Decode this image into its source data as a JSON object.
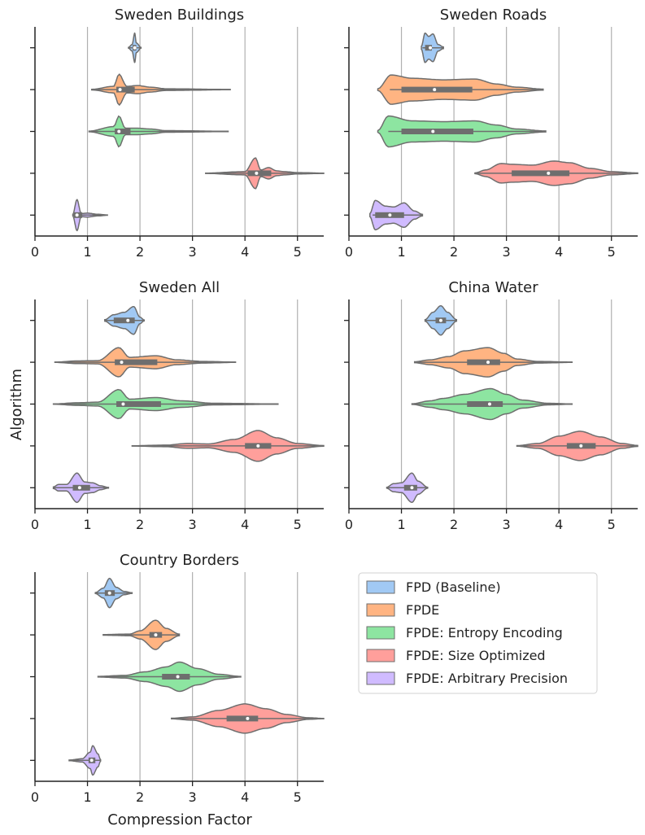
{
  "chart_data": {
    "type": "violin",
    "xlabel": "Compression Factor",
    "ylabel": "Algorithm",
    "xlim": [
      0,
      5.5
    ],
    "xticks": [
      "0",
      "1",
      "2",
      "3",
      "4",
      "5"
    ],
    "grid": "vertical",
    "legend": {
      "placement": "right of bottom-left panel",
      "entries": [
        {
          "label": "FPD (Baseline)",
          "color": "#a1c9f4"
        },
        {
          "label": "FPDE",
          "color": "#ffb482"
        },
        {
          "label": "FPDE: Entropy Encoding",
          "color": "#8de5a1"
        },
        {
          "label": "FPDE: Size Optimized",
          "color": "#ff9f9b"
        },
        {
          "label": "FPDE: Arbitrary Precision",
          "color": "#d0bbff"
        }
      ]
    },
    "panels": [
      {
        "title": "Sweden Buildings",
        "series": [
          {
            "min": 1.78,
            "q1": 1.86,
            "median": 1.9,
            "q3": 1.93,
            "max": 2.02,
            "profile": [
              [
                1.78,
                0.02
              ],
              [
                1.85,
                0.2
              ],
              [
                1.9,
                0.9
              ],
              [
                1.93,
                0.3
              ],
              [
                2.02,
                0.02
              ]
            ]
          },
          {
            "min": 1.08,
            "q1": 1.55,
            "median": 1.62,
            "q3": 1.9,
            "max": 3.72,
            "profile": [
              [
                1.08,
                0.02
              ],
              [
                1.5,
                0.2
              ],
              [
                1.6,
                0.95
              ],
              [
                1.75,
                0.2
              ],
              [
                1.95,
                0.25
              ],
              [
                2.2,
                0.15
              ],
              [
                2.5,
                0.05
              ],
              [
                3.72,
                0.01
              ]
            ]
          },
          {
            "min": 1.03,
            "q1": 1.52,
            "median": 1.6,
            "q3": 1.82,
            "max": 3.68,
            "profile": [
              [
                1.03,
                0.02
              ],
              [
                1.5,
                0.3
              ],
              [
                1.6,
                0.95
              ],
              [
                1.72,
                0.2
              ],
              [
                1.95,
                0.2
              ],
              [
                2.2,
                0.15
              ],
              [
                2.5,
                0.05
              ],
              [
                3.68,
                0.01
              ]
            ]
          },
          {
            "min": 3.25,
            "q1": 4.05,
            "median": 4.22,
            "q3": 4.5,
            "max": 5.5,
            "profile": [
              [
                3.25,
                0.01
              ],
              [
                4.0,
                0.1
              ],
              [
                4.2,
                0.95
              ],
              [
                4.3,
                0.2
              ],
              [
                4.45,
                0.35
              ],
              [
                4.6,
                0.15
              ],
              [
                4.75,
                0.1
              ],
              [
                5.0,
                0.04
              ],
              [
                5.5,
                0.01
              ]
            ]
          },
          {
            "min": 0.72,
            "q1": 0.74,
            "median": 0.8,
            "q3": 0.9,
            "max": 1.38,
            "profile": [
              [
                0.72,
                0.05
              ],
              [
                0.8,
                0.95
              ],
              [
                0.88,
                0.1
              ],
              [
                1.0,
                0.12
              ],
              [
                1.2,
                0.05
              ],
              [
                1.38,
                0.01
              ]
            ]
          }
        ]
      },
      {
        "title": "Sweden Roads",
        "series": [
          {
            "min": 1.4,
            "q1": 1.45,
            "median": 1.55,
            "q3": 1.58,
            "max": 1.8,
            "profile": [
              [
                1.38,
                0.1
              ],
              [
                1.45,
                0.9
              ],
              [
                1.52,
                0.7
              ],
              [
                1.6,
                0.85
              ],
              [
                1.7,
                0.2
              ],
              [
                1.8,
                0.05
              ]
            ]
          },
          {
            "min": 0.78,
            "q1": 1.0,
            "median": 1.63,
            "q3": 2.35,
            "max": 3.7,
            "profile": [
              [
                0.55,
                0.05
              ],
              [
                0.8,
                0.9
              ],
              [
                1.2,
                0.7
              ],
              [
                1.8,
                0.6
              ],
              [
                2.4,
                0.65
              ],
              [
                2.8,
                0.35
              ],
              [
                3.2,
                0.15
              ],
              [
                3.7,
                0.03
              ]
            ]
          },
          {
            "min": 0.75,
            "q1": 1.0,
            "median": 1.6,
            "q3": 2.37,
            "max": 3.75,
            "profile": [
              [
                0.55,
                0.05
              ],
              [
                0.75,
                0.95
              ],
              [
                1.2,
                0.65
              ],
              [
                1.8,
                0.6
              ],
              [
                2.4,
                0.65
              ],
              [
                2.8,
                0.4
              ],
              [
                3.2,
                0.15
              ],
              [
                3.75,
                0.03
              ]
            ]
          },
          {
            "min": 2.4,
            "q1": 3.1,
            "median": 3.8,
            "q3": 4.2,
            "max": 5.5,
            "profile": [
              [
                2.4,
                0.02
              ],
              [
                2.6,
                0.2
              ],
              [
                2.9,
                0.6
              ],
              [
                3.1,
                0.55
              ],
              [
                3.5,
                0.5
              ],
              [
                3.9,
                0.75
              ],
              [
                4.2,
                0.65
              ],
              [
                4.6,
                0.3
              ],
              [
                5.0,
                0.1
              ],
              [
                5.5,
                0.02
              ]
            ]
          },
          {
            "min": 0.45,
            "q1": 0.5,
            "median": 0.78,
            "q3": 1.05,
            "max": 1.4,
            "profile": [
              [
                0.4,
                0.1
              ],
              [
                0.5,
                0.9
              ],
              [
                0.7,
                0.55
              ],
              [
                0.85,
                0.5
              ],
              [
                1.05,
                0.75
              ],
              [
                1.25,
                0.25
              ],
              [
                1.4,
                0.05
              ]
            ]
          }
        ]
      },
      {
        "title": "Sweden All",
        "series": [
          {
            "min": 1.33,
            "q1": 1.5,
            "median": 1.77,
            "q3": 1.9,
            "max": 2.08,
            "profile": [
              [
                1.33,
                0.05
              ],
              [
                1.5,
                0.35
              ],
              [
                1.7,
                0.5
              ],
              [
                1.88,
                0.85
              ],
              [
                2.0,
                0.2
              ],
              [
                2.08,
                0.03
              ]
            ]
          },
          {
            "min": 0.38,
            "q1": 1.52,
            "median": 1.65,
            "q3": 2.33,
            "max": 3.82,
            "profile": [
              [
                0.38,
                0.01
              ],
              [
                0.8,
                0.08
              ],
              [
                1.2,
                0.1
              ],
              [
                1.6,
                0.9
              ],
              [
                1.8,
                0.3
              ],
              [
                2.3,
                0.4
              ],
              [
                2.7,
                0.15
              ],
              [
                3.2,
                0.05
              ],
              [
                3.82,
                0.01
              ]
            ]
          },
          {
            "min": 0.35,
            "q1": 1.55,
            "median": 1.68,
            "q3": 2.4,
            "max": 4.63,
            "profile": [
              [
                0.35,
                0.01
              ],
              [
                0.8,
                0.08
              ],
              [
                1.2,
                0.12
              ],
              [
                1.6,
                0.9
              ],
              [
                1.8,
                0.3
              ],
              [
                2.3,
                0.4
              ],
              [
                2.8,
                0.2
              ],
              [
                3.4,
                0.05
              ],
              [
                4.63,
                0.01
              ]
            ]
          },
          {
            "min": 1.85,
            "q1": 4.0,
            "median": 4.25,
            "q3": 4.5,
            "max": 5.5,
            "profile": [
              [
                1.85,
                0.01
              ],
              [
                2.5,
                0.05
              ],
              [
                2.9,
                0.15
              ],
              [
                3.3,
                0.12
              ],
              [
                3.8,
                0.4
              ],
              [
                4.25,
                0.95
              ],
              [
                4.6,
                0.5
              ],
              [
                5.0,
                0.15
              ],
              [
                5.5,
                0.02
              ]
            ]
          },
          {
            "min": 0.35,
            "q1": 0.72,
            "median": 0.85,
            "q3": 1.05,
            "max": 1.4,
            "profile": [
              [
                0.35,
                0.05
              ],
              [
                0.45,
                0.2
              ],
              [
                0.6,
                0.2
              ],
              [
                0.8,
                0.9
              ],
              [
                0.95,
                0.35
              ],
              [
                1.1,
                0.3
              ],
              [
                1.25,
                0.12
              ],
              [
                1.4,
                0.02
              ]
            ]
          }
        ]
      },
      {
        "title": "China Water",
        "series": [
          {
            "min": 1.45,
            "q1": 1.65,
            "median": 1.75,
            "q3": 1.85,
            "max": 2.05,
            "profile": [
              [
                1.45,
                0.05
              ],
              [
                1.6,
                0.5
              ],
              [
                1.75,
                0.9
              ],
              [
                1.88,
                0.5
              ],
              [
                2.05,
                0.05
              ]
            ]
          },
          {
            "min": 1.25,
            "q1": 2.25,
            "median": 2.65,
            "q3": 2.88,
            "max": 4.25,
            "profile": [
              [
                1.25,
                0.03
              ],
              [
                1.55,
                0.15
              ],
              [
                1.9,
                0.35
              ],
              [
                2.2,
                0.7
              ],
              [
                2.65,
                0.9
              ],
              [
                2.95,
                0.55
              ],
              [
                3.2,
                0.2
              ],
              [
                3.6,
                0.05
              ],
              [
                4.25,
                0.01
              ]
            ]
          },
          {
            "min": 1.2,
            "q1": 2.25,
            "median": 2.68,
            "q3": 2.93,
            "max": 4.25,
            "profile": [
              [
                1.2,
                0.02
              ],
              [
                1.55,
                0.2
              ],
              [
                1.8,
                0.35
              ],
              [
                2.2,
                0.6
              ],
              [
                2.7,
                0.95
              ],
              [
                3.0,
                0.6
              ],
              [
                3.3,
                0.25
              ],
              [
                3.8,
                0.05
              ],
              [
                4.25,
                0.01
              ]
            ]
          },
          {
            "min": 3.2,
            "q1": 4.15,
            "median": 4.42,
            "q3": 4.7,
            "max": 5.5,
            "profile": [
              [
                3.2,
                0.02
              ],
              [
                3.6,
                0.15
              ],
              [
                4.0,
                0.6
              ],
              [
                4.4,
                0.9
              ],
              [
                4.8,
                0.55
              ],
              [
                5.2,
                0.15
              ],
              [
                5.5,
                0.03
              ]
            ]
          },
          {
            "min": 0.72,
            "q1": 1.05,
            "median": 1.2,
            "q3": 1.3,
            "max": 1.5,
            "profile": [
              [
                0.72,
                0.03
              ],
              [
                0.85,
                0.25
              ],
              [
                1.0,
                0.3
              ],
              [
                1.2,
                0.9
              ],
              [
                1.32,
                0.4
              ],
              [
                1.5,
                0.03
              ]
            ]
          }
        ]
      },
      {
        "title": "Country Borders",
        "series": [
          {
            "min": 1.15,
            "q1": 1.33,
            "median": 1.42,
            "q3": 1.52,
            "max": 1.85,
            "profile": [
              [
                1.15,
                0.03
              ],
              [
                1.3,
                0.3
              ],
              [
                1.42,
                0.9
              ],
              [
                1.55,
                0.35
              ],
              [
                1.7,
                0.1
              ],
              [
                1.85,
                0.02
              ]
            ]
          },
          {
            "min": 1.3,
            "q1": 2.18,
            "median": 2.3,
            "q3": 2.42,
            "max": 2.75,
            "profile": [
              [
                1.3,
                0.02
              ],
              [
                1.8,
                0.05
              ],
              [
                2.0,
                0.25
              ],
              [
                2.3,
                0.9
              ],
              [
                2.5,
                0.4
              ],
              [
                2.75,
                0.05
              ]
            ]
          },
          {
            "min": 1.2,
            "q1": 2.42,
            "median": 2.72,
            "q3": 2.95,
            "max": 3.92,
            "profile": [
              [
                1.2,
                0.02
              ],
              [
                1.7,
                0.08
              ],
              [
                2.1,
                0.3
              ],
              [
                2.5,
                0.6
              ],
              [
                2.75,
                0.9
              ],
              [
                3.1,
                0.5
              ],
              [
                3.5,
                0.15
              ],
              [
                3.92,
                0.02
              ]
            ]
          },
          {
            "min": 2.6,
            "q1": 3.65,
            "median": 4.05,
            "q3": 4.25,
            "max": 5.5,
            "profile": [
              [
                2.6,
                0.02
              ],
              [
                3.0,
                0.1
              ],
              [
                3.5,
                0.5
              ],
              [
                4.0,
                0.9
              ],
              [
                4.4,
                0.6
              ],
              [
                4.8,
                0.25
              ],
              [
                5.2,
                0.05
              ],
              [
                5.5,
                0.01
              ]
            ]
          },
          {
            "min": 0.65,
            "q1": 1.02,
            "median": 1.08,
            "q3": 1.15,
            "max": 1.25,
            "profile": [
              [
                0.65,
                0.02
              ],
              [
                0.9,
                0.1
              ],
              [
                1.05,
                0.5
              ],
              [
                1.1,
                0.9
              ],
              [
                1.2,
                0.4
              ],
              [
                1.25,
                0.05
              ]
            ]
          }
        ]
      }
    ]
  }
}
